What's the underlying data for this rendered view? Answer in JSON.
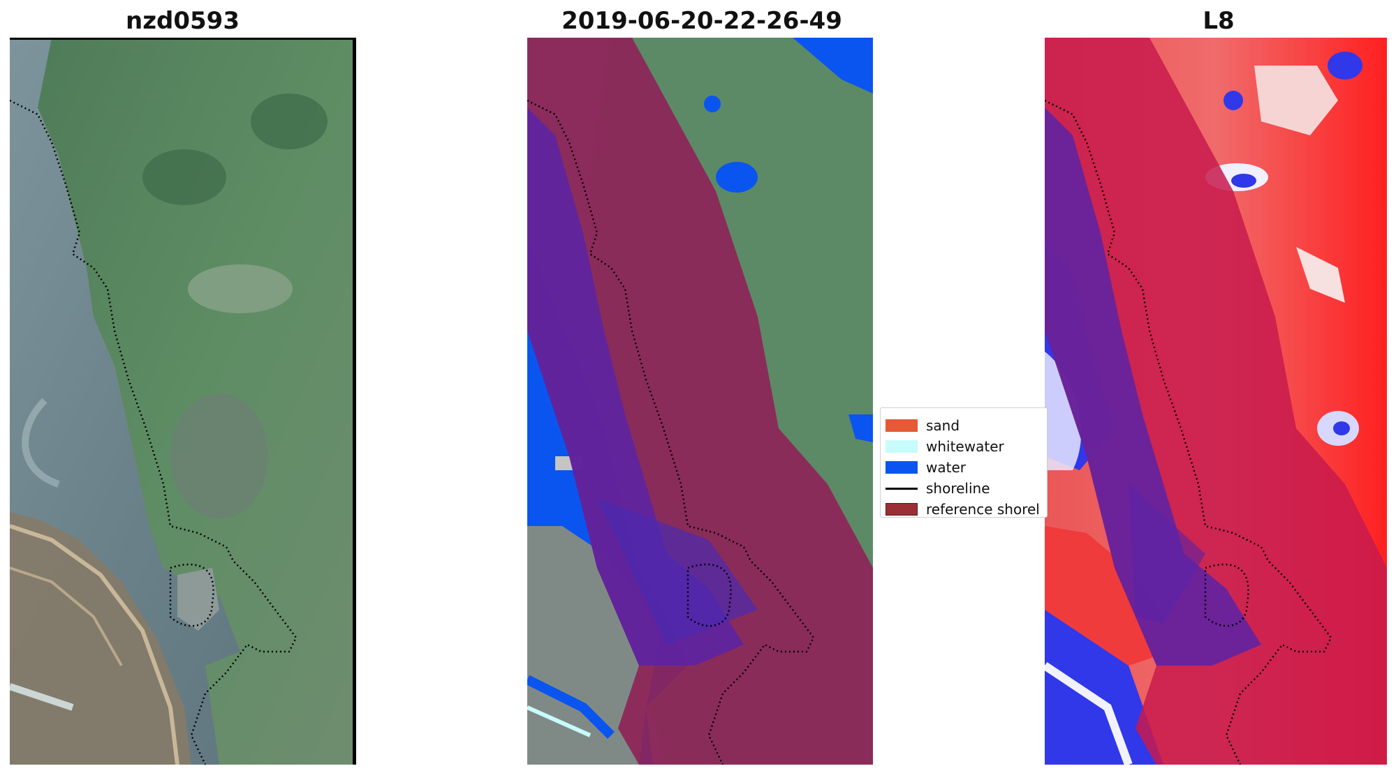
{
  "panels": [
    {
      "title": "nzd0593"
    },
    {
      "title": "2019-06-20-22-26-49"
    },
    {
      "title": "L8"
    }
  ],
  "legend": {
    "items": [
      {
        "label": "sand",
        "color": "#e55a35",
        "kind": "patch"
      },
      {
        "label": "whitewater",
        "color": "#c8fbfb",
        "kind": "patch"
      },
      {
        "label": "water",
        "color": "#0a55f0",
        "kind": "patch"
      },
      {
        "label": "shoreline",
        "color": "#000000",
        "kind": "line"
      },
      {
        "label": "reference shorel",
        "color": "#9b2f35",
        "kind": "patch"
      }
    ]
  },
  "colors": {
    "land_green": "#5c8a66",
    "sea_gray": "#6c8790",
    "reference_band": "#8e2458",
    "water_class": "#0a55f0",
    "l8_red": "#ee2a2a",
    "l8_blue": "#3038ea"
  }
}
